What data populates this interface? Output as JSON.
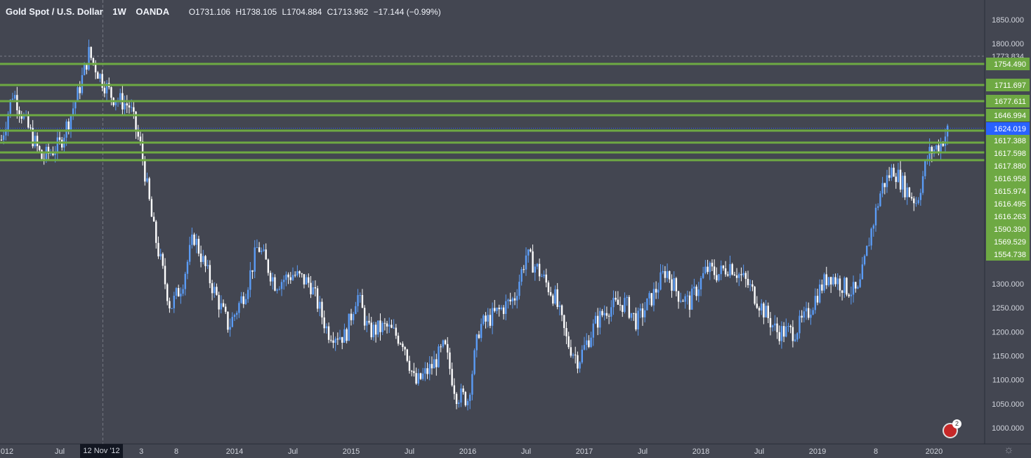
{
  "legend": {
    "symbol": "Gold Spot / U.S. Dollar",
    "interval": "1W",
    "exchange": "OANDA",
    "open": "O1731.106",
    "high": "H1738.105",
    "low": "L1704.884",
    "close": "C1713.962",
    "change": "−17.144 (−0.99%)"
  },
  "crosshair": {
    "x_label": "12 Nov '12"
  },
  "events_badge": {
    "count": "2",
    "icon": "us-flag-icon"
  },
  "colors": {
    "background": "#434651",
    "candle_up": "#5b9cf6",
    "candle_down": "#ffffff",
    "horizontal_line": "#6ea943",
    "last_price_label": "#2962ff",
    "axis_text": "#d1d4dc"
  },
  "chart_data": {
    "type": "candlestick",
    "title": "Gold Spot / U.S. Dollar",
    "x_ticks": [
      "012",
      "Jul",
      "3",
      "8",
      "2014",
      "Jul",
      "2015",
      "Jul",
      "2016",
      "Jul",
      "2017",
      "Jul",
      "2018",
      "Jul",
      "2019",
      "8",
      "2020"
    ],
    "x_tick_positions": [
      2012.0,
      2012.5,
      2013.2,
      2013.5,
      2014.0,
      2014.5,
      2015.0,
      2015.5,
      2016.0,
      2016.5,
      2017.0,
      2017.5,
      2018.0,
      2018.5,
      2019.0,
      2019.5,
      2020.0
    ],
    "y_ticks": [
      1000,
      1050,
      1100,
      1150,
      1200,
      1250,
      1300,
      1800,
      1850
    ],
    "ylim": [
      980,
      1865
    ],
    "xlim": [
      2012.0,
      2020.5
    ],
    "grid": false,
    "crosshair_date": 2012.87,
    "last_price": 1624.019,
    "dashed_high_level": 1773.834,
    "horizontal_levels": [
      {
        "label": "1754.490",
        "value": 1754.49
      },
      {
        "label": "1711.697",
        "value": 1711.697
      },
      {
        "label": "1677.611",
        "value": 1677.611
      },
      {
        "label": "1646.994",
        "value": 1646.994
      },
      {
        "label": "1617.388",
        "value": 1617.388
      },
      {
        "label": "1617.598",
        "value": 1617.598
      },
      {
        "label": "1617.880",
        "value": 1617.88
      },
      {
        "label": "1616.958",
        "value": 1616.958
      },
      {
        "label": "1615.974",
        "value": 1615.974
      },
      {
        "label": "1616.495",
        "value": 1616.495
      },
      {
        "label": "1616.263",
        "value": 1616.263
      },
      {
        "label": "1590.390",
        "value": 1590.39
      },
      {
        "label": "1569.529",
        "value": 1569.529
      },
      {
        "label": "1554.738",
        "value": 1554.738
      }
    ],
    "price_path": [
      [
        2012.0,
        1600
      ],
      [
        2012.1,
        1700
      ],
      [
        2012.2,
        1640
      ],
      [
        2012.35,
        1560
      ],
      [
        2012.5,
        1590
      ],
      [
        2012.65,
        1690
      ],
      [
        2012.75,
        1780
      ],
      [
        2012.85,
        1730
      ],
      [
        2012.95,
        1690
      ],
      [
        2013.1,
        1670
      ],
      [
        2013.2,
        1580
      ],
      [
        2013.3,
        1420
      ],
      [
        2013.45,
        1250
      ],
      [
        2013.55,
        1300
      ],
      [
        2013.65,
        1400
      ],
      [
        2013.8,
        1300
      ],
      [
        2013.95,
        1210
      ],
      [
        2014.1,
        1290
      ],
      [
        2014.2,
        1380
      ],
      [
        2014.35,
        1300
      ],
      [
        2014.5,
        1320
      ],
      [
        2014.65,
        1300
      ],
      [
        2014.8,
        1200
      ],
      [
        2014.95,
        1190
      ],
      [
        2015.05,
        1280
      ],
      [
        2015.15,
        1200
      ],
      [
        2015.3,
        1210
      ],
      [
        2015.45,
        1180
      ],
      [
        2015.55,
        1090
      ],
      [
        2015.7,
        1130
      ],
      [
        2015.8,
        1170
      ],
      [
        2015.9,
        1070
      ],
      [
        2016.0,
        1060
      ],
      [
        2016.1,
        1210
      ],
      [
        2016.25,
        1240
      ],
      [
        2016.4,
        1270
      ],
      [
        2016.5,
        1360
      ],
      [
        2016.6,
        1330
      ],
      [
        2016.75,
        1270
      ],
      [
        2016.85,
        1180
      ],
      [
        2016.95,
        1140
      ],
      [
        2017.1,
        1220
      ],
      [
        2017.2,
        1250
      ],
      [
        2017.35,
        1260
      ],
      [
        2017.45,
        1220
      ],
      [
        2017.6,
        1280
      ],
      [
        2017.7,
        1330
      ],
      [
        2017.8,
        1280
      ],
      [
        2017.9,
        1260
      ],
      [
        2018.05,
        1330
      ],
      [
        2018.15,
        1320
      ],
      [
        2018.25,
        1340
      ],
      [
        2018.4,
        1300
      ],
      [
        2018.55,
        1240
      ],
      [
        2018.65,
        1200
      ],
      [
        2018.8,
        1200
      ],
      [
        2018.9,
        1230
      ],
      [
        2019.0,
        1280
      ],
      [
        2019.1,
        1320
      ],
      [
        2019.25,
        1290
      ],
      [
        2019.35,
        1280
      ],
      [
        2019.45,
        1400
      ],
      [
        2019.55,
        1500
      ],
      [
        2019.65,
        1540
      ],
      [
        2019.75,
        1500
      ],
      [
        2019.85,
        1470
      ],
      [
        2019.95,
        1570
      ],
      [
        2020.05,
        1590
      ],
      [
        2020.12,
        1620
      ]
    ]
  }
}
